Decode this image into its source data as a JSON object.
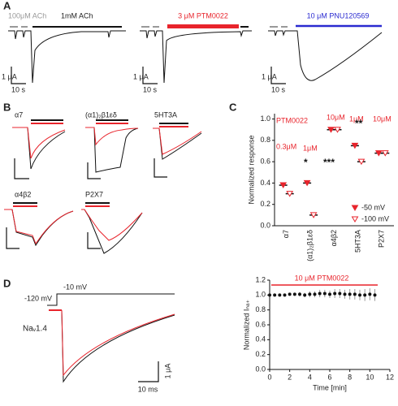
{
  "panel_labels": [
    "A",
    "B",
    "C",
    "D"
  ],
  "panel_a": {
    "labels": [
      "100μM ACh",
      "1mM ACh",
      "3 μM PTM0022",
      "10 μM PNU120569"
    ],
    "scale_current": "1 μA",
    "scale_time": "10 s"
  },
  "panel_b": {
    "traces": [
      "α7",
      "(α1)₂β1εδ",
      "5HT3A",
      "α4β2",
      "P2X7"
    ]
  },
  "panel_d": {
    "voltages": [
      "-120 mV",
      "-10 mV"
    ],
    "channel": "Naᵥ1.4",
    "scale_current": "1 μA",
    "scale_time": "10 ms"
  },
  "chart_data": [
    {
      "type": "scatter",
      "y_label": "Normalized response",
      "categories": [
        "α7",
        "(α1)₂β1εδ",
        "α4β2",
        "5HT3A",
        "P2X7"
      ],
      "series": [
        {
          "name": "-50 mV",
          "color": "#e8242c",
          "values": [
            0.38,
            0.4,
            0.9,
            0.75,
            0.68
          ]
        },
        {
          "name": "-100 mV",
          "color": "#e8242c",
          "values": [
            0.3,
            0.1,
            0.9,
            0.6,
            0.68
          ]
        }
      ],
      "annotations": [
        "PTM0022",
        "0.3μM",
        "1μM",
        "10μM",
        "1μM",
        "10μM",
        "*",
        "***",
        "**"
      ],
      "ylim": [
        0,
        1.05
      ],
      "yticks": [
        {
          "value": 0,
          "label": "0.0"
        },
        0.2,
        0.4,
        0.6,
        0.8,
        {
          "value": 1,
          "label": "1.0"
        }
      ]
    },
    {
      "type": "scatter",
      "x_label": "Time [min]",
      "y_label": "Normalized Iₙₐ₊",
      "annotation": "10 μM PTM0022",
      "x": [
        0,
        0.5,
        1,
        1.5,
        2,
        2.5,
        3,
        3.5,
        4,
        4.5,
        5,
        5.5,
        6,
        6.5,
        7,
        7.5,
        8,
        8.5,
        9,
        9.5,
        10,
        10.5
      ],
      "series": [
        {
          "color": "#111111",
          "values": [
            1.0,
            1.0,
            1.0,
            1.0,
            1.01,
            1.01,
            1.01,
            1.0,
            1.01,
            1.01,
            1.02,
            1.02,
            1.01,
            1.02,
            1.02,
            1.01,
            1.01,
            1.01,
            1.0,
            1.0,
            1.01,
            1.0
          ],
          "errors": [
            0.01,
            0.01,
            0.01,
            0.02,
            0.02,
            0.02,
            0.03,
            0.03,
            0.04,
            0.04,
            0.05,
            0.05,
            0.05,
            0.06,
            0.06,
            0.06,
            0.07,
            0.07,
            0.07,
            0.08,
            0.08,
            0.08
          ]
        }
      ],
      "xlim": [
        0,
        12
      ],
      "xticks": [
        0,
        2,
        4,
        6,
        8,
        10,
        12
      ],
      "ylim": [
        0,
        1.2
      ],
      "yticks": [
        {
          "value": 0,
          "label": "0.0"
        },
        0.2,
        0.4,
        0.6,
        0.8,
        {
          "value": 1,
          "label": "1.0"
        },
        1.2
      ]
    }
  ]
}
